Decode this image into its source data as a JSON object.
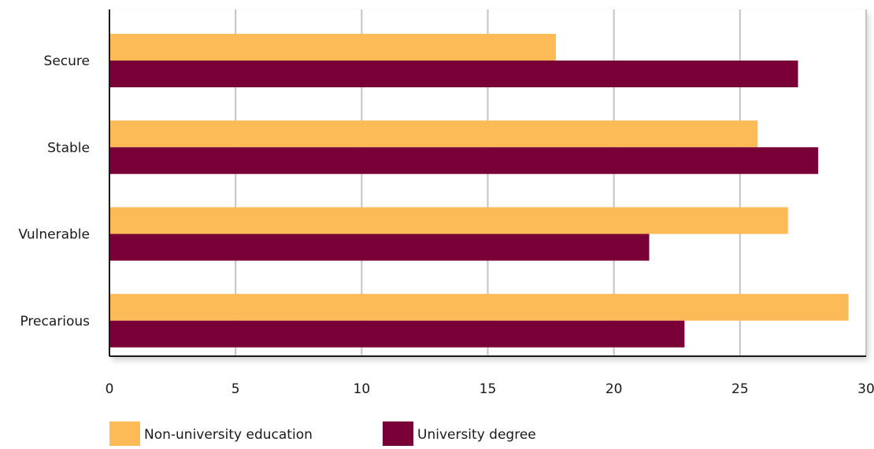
{
  "chart_data": {
    "type": "bar",
    "orientation": "horizontal",
    "categories": [
      "Secure",
      "Stable",
      "Vulnerable",
      "Precarious"
    ],
    "series": [
      {
        "name": "Non-university education",
        "color": "#FDBB58",
        "values": [
          17.7,
          25.7,
          26.9,
          29.3
        ]
      },
      {
        "name": "University degree",
        "color": "#780037",
        "values": [
          27.3,
          28.1,
          21.4,
          22.8
        ]
      }
    ],
    "xlim": [
      0,
      30
    ],
    "xticks": [
      "0",
      "5",
      "10",
      "15",
      "20",
      "25",
      "30"
    ],
    "grid": true,
    "legend_position": "bottom-left",
    "title": "",
    "xlabel": "",
    "ylabel": ""
  }
}
